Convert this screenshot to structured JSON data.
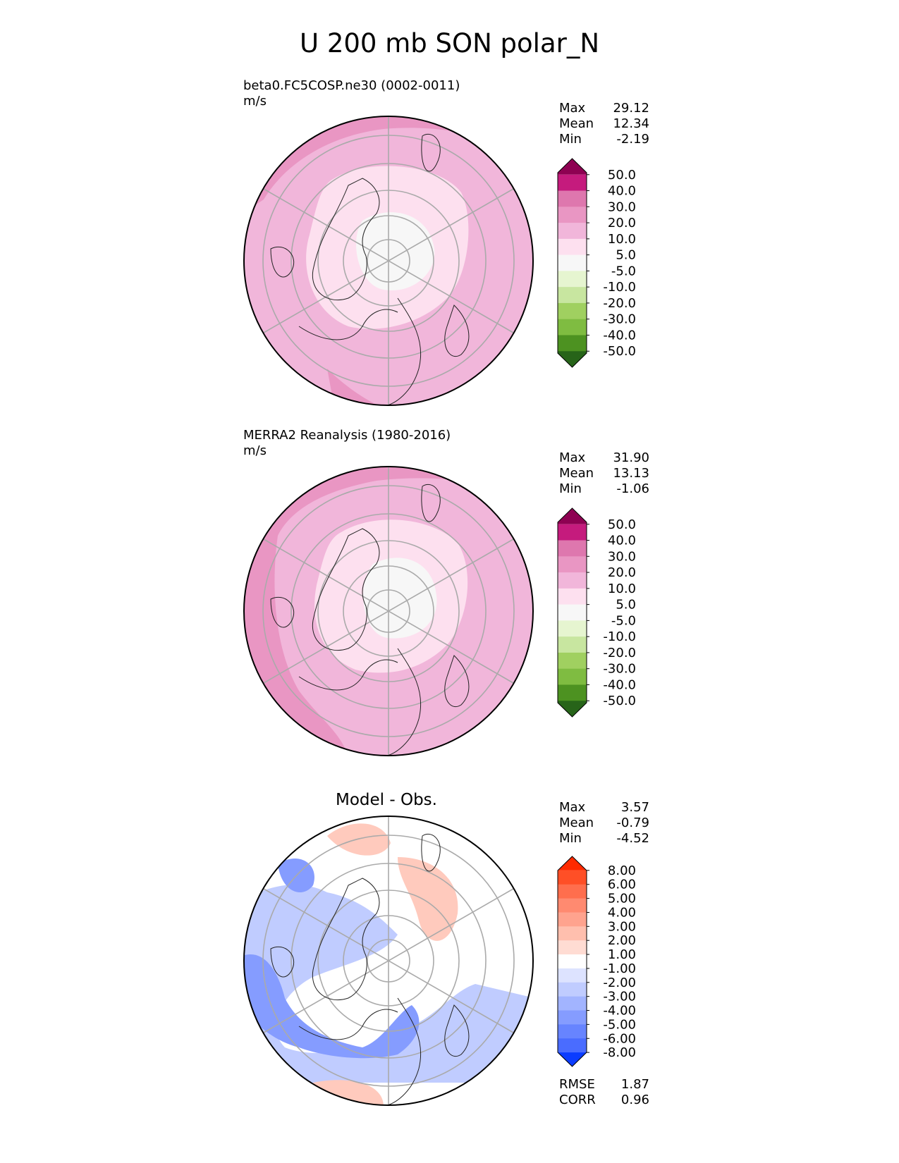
{
  "title": "U 200 mb SON polar_N",
  "panels": [
    {
      "label": "beta0.FC5COSP.ne30 (0002-0011)",
      "units": "m/s",
      "stats": [
        {
          "name": "Max",
          "value": "29.12"
        },
        {
          "name": "Mean",
          "value": "12.34"
        },
        {
          "name": "Min",
          "value": "-2.19"
        }
      ],
      "colorbar": {
        "labels": [
          "50.0",
          "40.0",
          "30.0",
          "20.0",
          "10.0",
          "5.0",
          "-5.0",
          "-10.0",
          "-20.0",
          "-30.0",
          "-40.0",
          "-50.0"
        ],
        "colors": [
          "#8e0152",
          "#c51b7d",
          "#de77ae",
          "#e996c3",
          "#f1b6da",
          "#fde0ef",
          "#f7f7f7",
          "#e6f5d0",
          "#c8e6a0",
          "#a0d060",
          "#7fbc41",
          "#4d9221",
          "#276419"
        ]
      }
    },
    {
      "label": "MERRA2 Reanalysis (1980-2016)",
      "units": "m/s",
      "stats": [
        {
          "name": "Max",
          "value": "31.90"
        },
        {
          "name": "Mean",
          "value": "13.13"
        },
        {
          "name": "Min",
          "value": "-1.06"
        }
      ],
      "colorbar": {
        "labels": [
          "50.0",
          "40.0",
          "30.0",
          "20.0",
          "10.0",
          "5.0",
          "-5.0",
          "-10.0",
          "-20.0",
          "-30.0",
          "-40.0",
          "-50.0"
        ],
        "colors": [
          "#8e0152",
          "#c51b7d",
          "#de77ae",
          "#e996c3",
          "#f1b6da",
          "#fde0ef",
          "#f7f7f7",
          "#e6f5d0",
          "#c8e6a0",
          "#a0d060",
          "#7fbc41",
          "#4d9221",
          "#276419"
        ]
      }
    },
    {
      "label": "Model - Obs.",
      "stats": [
        {
          "name": "Max",
          "value": "3.57"
        },
        {
          "name": "Mean",
          "value": "-0.79"
        },
        {
          "name": "Min",
          "value": "-4.52"
        }
      ],
      "metrics": [
        {
          "name": "RMSE",
          "value": "1.87"
        },
        {
          "name": "CORR",
          "value": "0.96"
        }
      ],
      "colorbar": {
        "labels": [
          "8.00",
          "6.00",
          "5.00",
          "4.00",
          "3.00",
          "2.00",
          "1.00",
          "-1.00",
          "-2.00",
          "-3.00",
          "-4.00",
          "-5.00",
          "-6.00",
          "-8.00"
        ],
        "colors": [
          "#ff2a00",
          "#ff4f26",
          "#ff6e4d",
          "#ff8a70",
          "#ffa38e",
          "#ffbfae",
          "#ffdcd3",
          "#ffffff",
          "#dde3ff",
          "#c0ccff",
          "#a2b4ff",
          "#859cff",
          "#6784ff",
          "#4a6cff",
          "#0b3cff"
        ]
      }
    }
  ],
  "map_colors": {
    "ring_outer": "#e996c3",
    "ring_mid": "#f1b6da",
    "inner": "#fde0ef",
    "core": "#f7f7f7",
    "diff_pos": "#ffcabd",
    "diff_neg_light": "#c0ccff",
    "diff_neg_dark": "#859cff"
  }
}
